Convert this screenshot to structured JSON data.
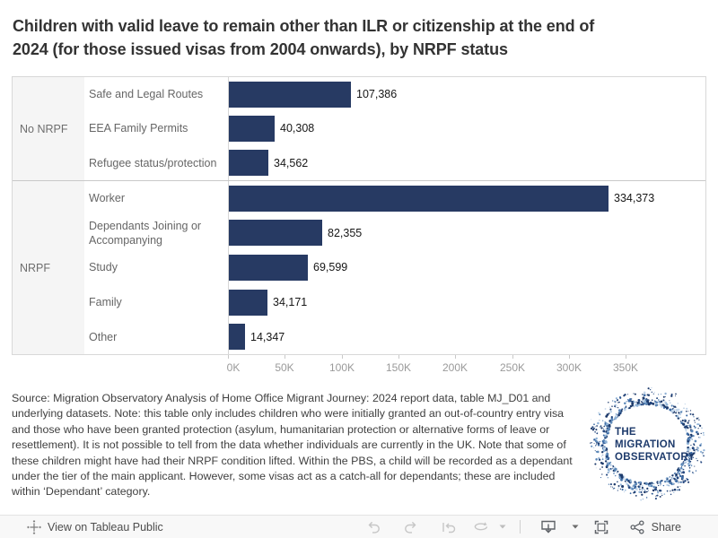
{
  "title": {
    "line1": "Children with valid leave to remain other than ILR or citizenship at the end of",
    "line2": "2024 (for those issued visas from 2004 onwards), by NRPF status"
  },
  "chart_data": {
    "type": "bar",
    "orientation": "horizontal",
    "bar_color": "#273a63",
    "xlim": [
      0,
      350000
    ],
    "x_axis": {
      "ticks": [
        "0K",
        "50K",
        "100K",
        "150K",
        "200K",
        "250K",
        "300K",
        "350K"
      ],
      "tick_values": [
        0,
        50000,
        100000,
        150000,
        200000,
        250000,
        300000,
        350000
      ]
    },
    "groups": [
      {
        "label": "No NRPF",
        "rows": [
          {
            "label": "Safe and Legal Routes",
            "value": 107386,
            "value_label": "107,386"
          },
          {
            "label": "EEA Family Permits",
            "value": 40308,
            "value_label": "40,308"
          },
          {
            "label": "Refugee status/protection",
            "value": 34562,
            "value_label": "34,562"
          }
        ]
      },
      {
        "label": "NRPF",
        "rows": [
          {
            "label": "Worker",
            "value": 334373,
            "value_label": "334,373"
          },
          {
            "label": "Dependants Joining or Accompanying",
            "value": 82355,
            "value_label": "82,355"
          },
          {
            "label": "Study",
            "value": 69599,
            "value_label": "69,599"
          },
          {
            "label": "Family",
            "value": 34171,
            "value_label": "34,171"
          },
          {
            "label": "Other",
            "value": 14347,
            "value_label": "14,347"
          }
        ]
      }
    ]
  },
  "source_note": "Source: Migration Observatory Analysis of Home Office Migrant Journey: 2024 report data, table MJ_D01 and underlying datasets. Note: this table only includes children who were initially granted an out-of-country entry visa and those who have been granted protection (asylum, humanitarian protection or alternative forms of leave or resettlement). It is not possible to tell from the data whether individuals are currently in the UK. Note that some of these children might have had their NRPF condition lifted. Within the PBS, a child will be recorded as a dependant under the tier of the main applicant. However, some visas act as a catch-all for dependants; these are included within ‘Dependant’ category.",
  "logo": {
    "line1": "THE",
    "line2": "MIGRATION",
    "line3": "OBSERVATORY",
    "navy": "#1d3a6b"
  },
  "toolbar": {
    "view_label": "View on Tableau Public",
    "share_label": "Share",
    "icons": [
      "tableau-logo-icon",
      "undo-icon",
      "redo-icon",
      "replay-icon",
      "refresh-icon",
      "caret-down-icon",
      "download-icon",
      "caret-down-icon",
      "fullscreen-icon",
      "share-icon"
    ]
  }
}
